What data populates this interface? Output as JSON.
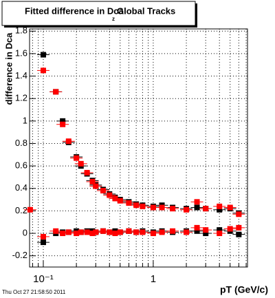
{
  "chart_data": {
    "type": "scatter",
    "title": "Fitted difference in Dca",
    "title_subscript": "z",
    "title_suffix": "Global Tracks",
    "y_label": "difference in Dca",
    "x_label": "pT (GeV/c)",
    "footer": "Thu Oct 27 21:58:50 2011",
    "log_x": true,
    "grid": true,
    "xlim": [
      0.075,
      7.2
    ],
    "ylim": [
      -0.3,
      1.82
    ],
    "xticks": [
      {
        "value": 0.1,
        "label": "10⁻¹"
      },
      1
    ],
    "x_minor_ticks": [
      0.08,
      0.09,
      0.2,
      0.3,
      0.4,
      0.5,
      0.6,
      0.7,
      0.8,
      0.9,
      2,
      3,
      4,
      5,
      6,
      7
    ],
    "yticks": [
      -0.2,
      0,
      0.2,
      0.4,
      0.6,
      0.8,
      1,
      1.2,
      1.4,
      1.6,
      1.8
    ],
    "x": [
      0.076,
      0.1,
      0.13,
      0.15,
      0.17,
      0.2,
      0.22,
      0.25,
      0.28,
      0.3,
      0.35,
      0.4,
      0.45,
      0.5,
      0.6,
      0.7,
      0.8,
      1.0,
      1.2,
      1.5,
      2.0,
      2.5,
      3.0,
      4.0,
      5.0,
      6.0
    ],
    "series": [
      {
        "color": "#000000",
        "values": [
          null,
          1.59,
          1.26,
          1.0,
          0.81,
          0.68,
          0.6,
          0.53,
          0.47,
          0.43,
          0.39,
          0.35,
          0.32,
          0.3,
          0.28,
          0.26,
          0.25,
          0.24,
          0.25,
          0.23,
          0.22,
          0.23,
          0.22,
          0.21,
          0.22,
          0.18
        ]
      },
      {
        "color": "#000000",
        "values": [
          null,
          -0.08,
          0.0,
          0.01,
          0.01,
          0.02,
          0.01,
          0.02,
          0.02,
          0.01,
          0.02,
          0.01,
          0.02,
          0.01,
          0.02,
          0.01,
          0.02,
          0.01,
          0.02,
          0.01,
          0.02,
          0.02,
          0.0,
          0.03,
          0.02,
          -0.01
        ]
      },
      {
        "color": "#ff0000",
        "values": [
          0.21,
          1.45,
          1.26,
          0.97,
          0.82,
          0.67,
          0.62,
          0.54,
          0.46,
          0.42,
          0.38,
          0.34,
          0.31,
          0.29,
          0.27,
          0.25,
          0.24,
          0.23,
          0.23,
          0.22,
          0.21,
          0.28,
          0.22,
          0.24,
          0.23,
          0.17
        ]
      },
      {
        "color": "#ff0000",
        "values": [
          null,
          -0.03,
          0.02,
          0.0,
          0.01,
          0.0,
          0.01,
          0.01,
          0.0,
          0.01,
          0.02,
          0.01,
          0.0,
          0.01,
          0.02,
          0.01,
          0.01,
          0.0,
          0.01,
          0.02,
          0.01,
          0.05,
          0.03,
          0.0,
          0.04,
          0.05
        ]
      }
    ]
  }
}
